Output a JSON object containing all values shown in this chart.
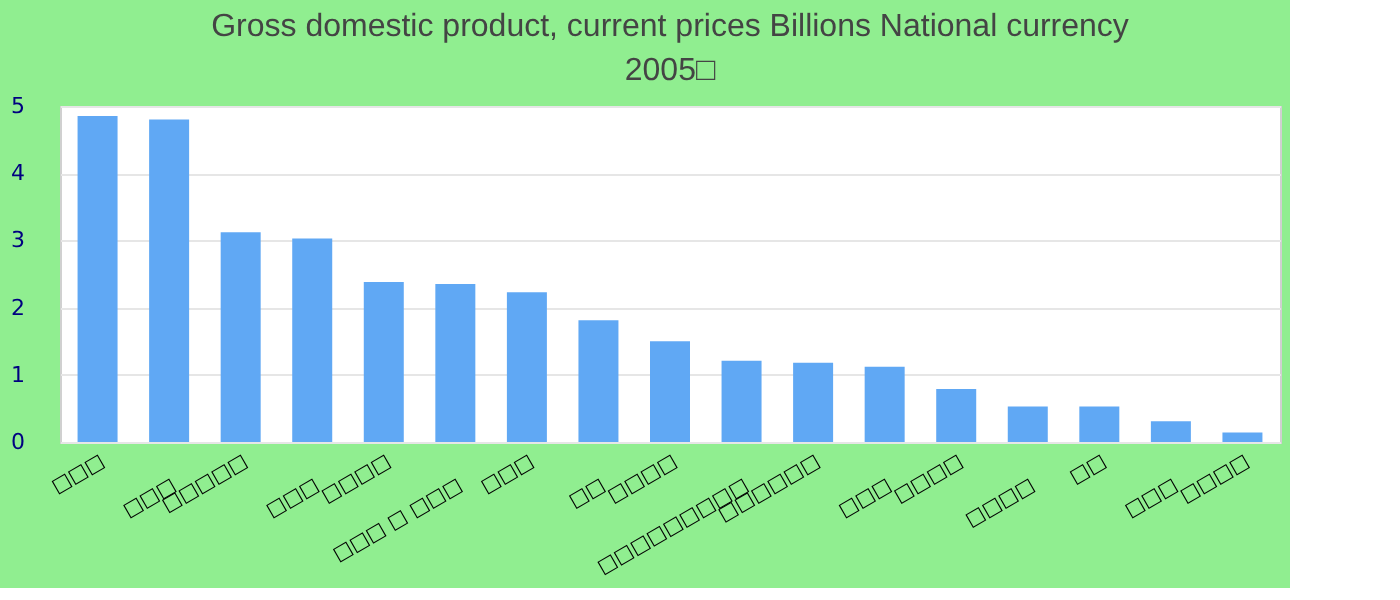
{
  "chart_data": {
    "type": "bar",
    "title": "Gross domestic product, current prices Billions National currency",
    "subtitle": "2005□",
    "categories": [
      "□□□",
      "□□□",
      "□□□□□",
      "□□□",
      "□□□□",
      "□□□ □ □□□",
      "□□□",
      "□□",
      "□□□□",
      "□□□□□□□□□",
      "□□□□□□",
      "□□□",
      "□□□□",
      "□□□□",
      "□□",
      "□□□",
      "□□□□"
    ],
    "values": [
      4.85,
      4.8,
      3.12,
      3.03,
      2.38,
      2.35,
      2.23,
      1.81,
      1.5,
      1.21,
      1.18,
      1.12,
      0.79,
      0.53,
      0.53,
      0.31,
      0.14
    ],
    "color": "#60a8f4",
    "ylim": [
      0,
      5
    ],
    "yticks": [
      0,
      1,
      2,
      3,
      4,
      5
    ],
    "grid": "y"
  }
}
